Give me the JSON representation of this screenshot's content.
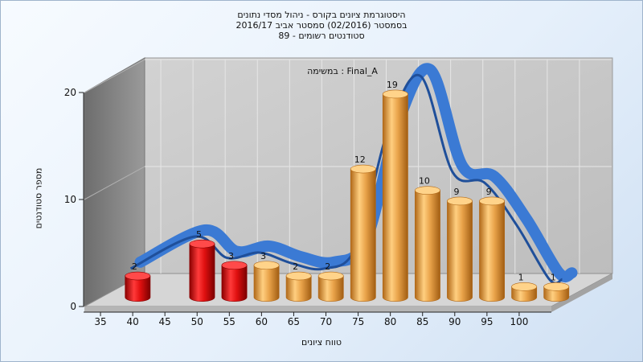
{
  "title_lines": [
    "היסטוגרמת ציונים בקורס - ניהול מסדי נתונים",
    "בסמסטר  (02/2016)  סמסטר אביב 2016/17",
    "סטודנטים רשומים - 89"
  ],
  "chart_data": {
    "type": "bar",
    "annotation": "במשימה : Final_A",
    "xlabel": "טווח ציונים",
    "ylabel": "מספר סטודנטים",
    "categories": [
      "35",
      "40",
      "45",
      "50",
      "55",
      "60",
      "65",
      "70",
      "75",
      "80",
      "85",
      "90",
      "95",
      "100"
    ],
    "x_tick_labels": [
      "35",
      "40",
      "45",
      "50",
      "55",
      "60",
      "65",
      "70",
      "75",
      "80",
      "85",
      "90",
      "95",
      "100"
    ],
    "bars": [
      {
        "x": 37.5,
        "value": 2,
        "color": "red"
      },
      {
        "x": 47.5,
        "value": 5,
        "color": "red"
      },
      {
        "x": 52.5,
        "value": 3,
        "color": "red"
      },
      {
        "x": 57.5,
        "value": 3,
        "color": "orange"
      },
      {
        "x": 62.5,
        "value": 2,
        "color": "orange"
      },
      {
        "x": 67.5,
        "value": 2,
        "color": "orange"
      },
      {
        "x": 72.5,
        "value": 12,
        "color": "orange"
      },
      {
        "x": 77.5,
        "value": 19,
        "color": "orange"
      },
      {
        "x": 82.5,
        "value": 10,
        "color": "orange"
      },
      {
        "x": 87.5,
        "value": 9,
        "color": "orange"
      },
      {
        "x": 92.5,
        "value": 9,
        "color": "orange"
      },
      {
        "x": 97.5,
        "value": 1,
        "color": "orange"
      },
      {
        "x": 102.5,
        "value": 1,
        "color": "orange"
      }
    ],
    "curve": {
      "name": "",
      "points": [
        [
          35,
          2
        ],
        [
          45,
          5
        ],
        [
          50,
          3
        ],
        [
          55,
          3.5
        ],
        [
          60,
          2.5
        ],
        [
          65,
          2
        ],
        [
          70,
          4
        ],
        [
          75,
          15
        ],
        [
          80,
          20
        ],
        [
          85,
          11
        ],
        [
          90,
          10
        ],
        [
          95,
          6
        ],
        [
          100,
          1
        ],
        [
          102,
          1
        ]
      ]
    },
    "ylim": [
      0,
      20
    ],
    "y_ticks": [
      0,
      10,
      20
    ],
    "xlim": [
      32.5,
      105
    ],
    "grid": true,
    "colors": {
      "red_top": "#ff4a4a",
      "red_mid": "#e01010",
      "red_dark": "#8a0000",
      "orange_top": "#ffd38a",
      "orange_mid": "#eba44a",
      "orange_dark": "#b26a1a",
      "curve": "#3b7ad4",
      "curve_dark": "#1f4f9a",
      "back_wall": "#c9c9c9",
      "side_wall": "#8c8c8c",
      "floor": "#d9d9d9"
    }
  }
}
